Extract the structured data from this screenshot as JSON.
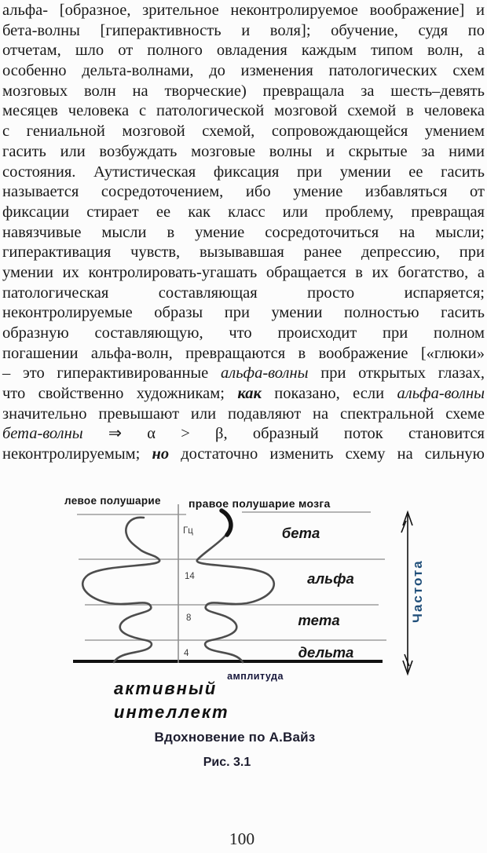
{
  "page": {
    "number": "100"
  },
  "body_text": {
    "lines": [
      [
        {
          "t": "альфа- [образное, зрительное неконтролируемое воображение] и"
        }
      ],
      [
        {
          "t": "бета-волны [гиперактивность и воля]; обучение, судя по"
        }
      ],
      [
        {
          "t": "отчетам, шло от полного овладения каждым типом волн, а"
        }
      ],
      [
        {
          "t": "особенно дельта-волнами, до изменения патологических схем"
        }
      ],
      [
        {
          "t": "мозговых волн на творческие) превращала за шесть–девять"
        }
      ],
      [
        {
          "t": "месяцев человека с патологической мозговой схемой в человека"
        }
      ],
      [
        {
          "t": "с гениальной мозговой схемой, сопровождающейся умением"
        }
      ],
      [
        {
          "t": "гасить или возбуждать мозговые волны и скрытые за ними"
        }
      ],
      [
        {
          "t": "состояния. Аутистическая фиксация при умении ее гасить"
        }
      ],
      [
        {
          "t": "называется сосредоточением, ибо умение избавляться от"
        }
      ],
      [
        {
          "t": "фиксации стирает ее как класс или проблему, превращая"
        }
      ],
      [
        {
          "t": "навязчивые мысли в умение сосредоточиться на мысли;"
        }
      ],
      [
        {
          "t": "гиперактивация чувств, вызывавшая ранее депрессию, при"
        }
      ],
      [
        {
          "t": "умении их контролировать-угашать обращается в их богатство, а"
        }
      ],
      [
        {
          "t": "патологическая составляющая просто испаряется;"
        }
      ],
      [
        {
          "t": "неконтролируемые образы при умении полностью гасить"
        }
      ],
      [
        {
          "t": "образную составляющую, что происходит при полном"
        }
      ],
      [
        {
          "t": "погашении альфа-волн, превращаются в воображение [«глюки»"
        }
      ],
      [
        {
          "t": "– это гиперактивированные "
        },
        {
          "t": "альфа-волны",
          "s": "i"
        },
        {
          "t": " при открытых глазах,"
        }
      ],
      [
        {
          "t": "что свойственно художникам; "
        },
        {
          "t": "как",
          "s": "bi"
        },
        {
          "t": " показано, если "
        },
        {
          "t": "альфа-волны",
          "s": "i"
        }
      ],
      [
        {
          "t": "значительно превышают или подавляют на спектральной схеме"
        }
      ],
      [
        {
          "t": "бета-волны",
          "s": "i"
        },
        {
          "t": " ⇒ α > β, образный поток становится"
        }
      ],
      [
        {
          "t": "неконтролируемым; "
        },
        {
          "t": "но",
          "s": "bi"
        },
        {
          "t": " достаточно изменить схему на сильную"
        }
      ]
    ]
  },
  "figure": {
    "left_hemisphere_label": "левое полушарие",
    "right_hemisphere_label": "правое полушарие мозга",
    "axis_unit": "Гц",
    "ticks": [
      "14",
      "8",
      "4"
    ],
    "bands": [
      "бета",
      "альфа",
      "тета",
      "дельта"
    ],
    "amplitude_label": "амплитуда",
    "frequency_label": "Частота",
    "annotation": [
      "активный",
      "интеллект"
    ],
    "caption": "Вдохновение по А.Вайз",
    "figure_number": "Рис. 3.1",
    "colors": {
      "frequency_label": "#1f4e79",
      "gridline": "#b5b5b5",
      "curve": "#4d4d4d",
      "baseline": "#111111"
    }
  }
}
